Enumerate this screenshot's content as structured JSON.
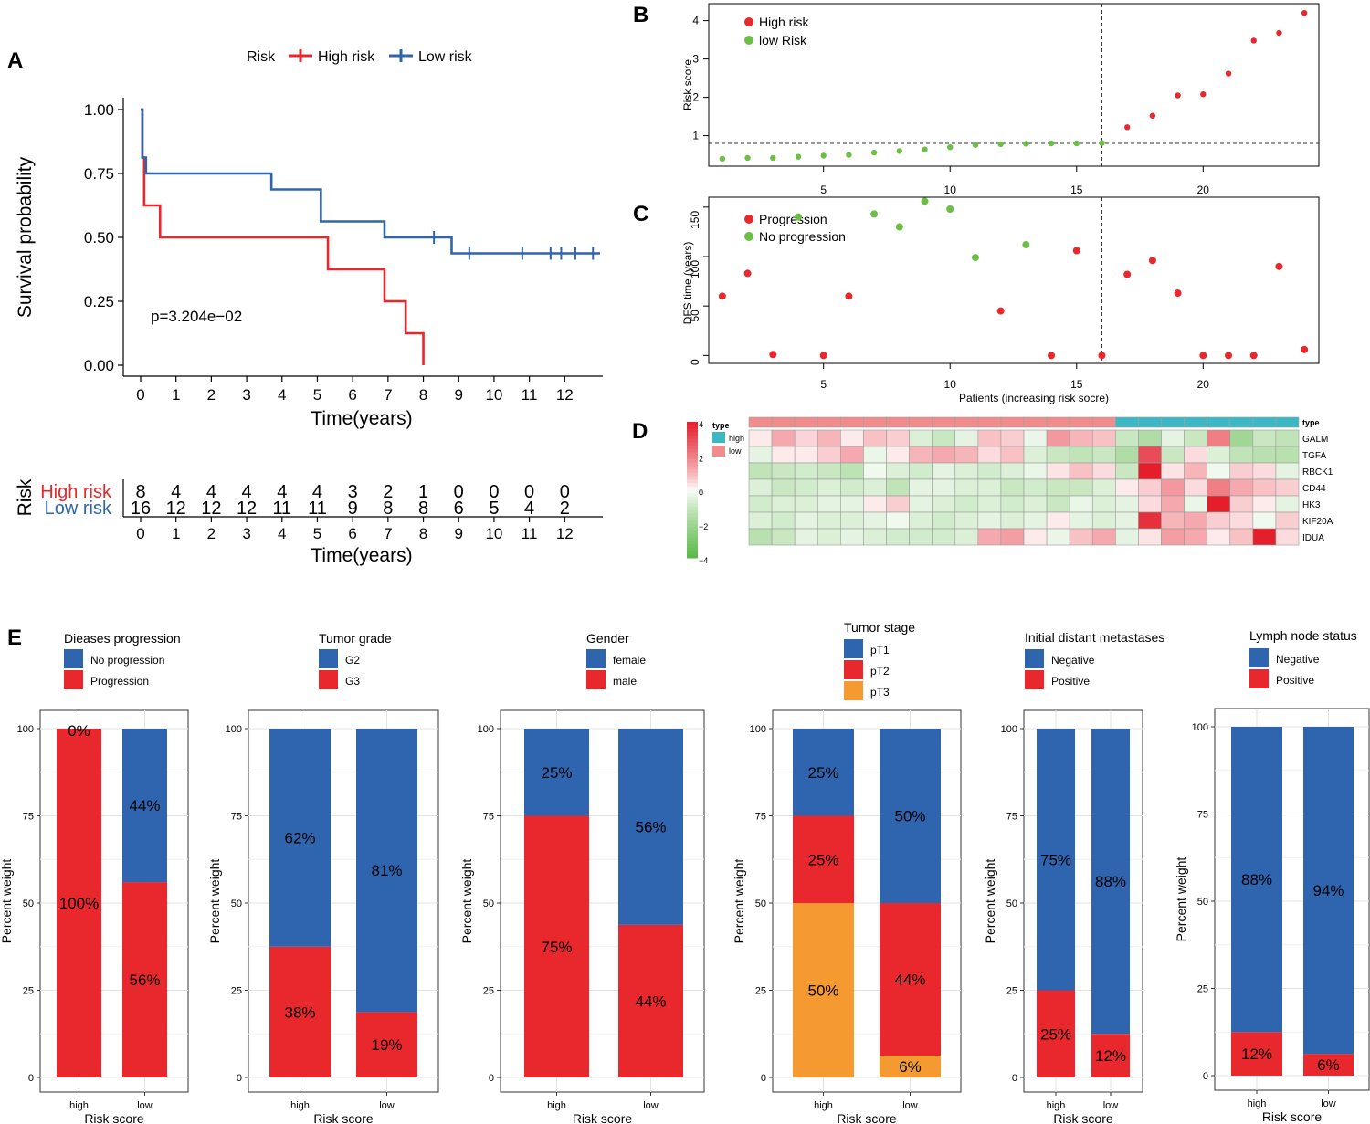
{
  "colors": {
    "high": "#E8282C",
    "low": "#2F64AF",
    "green": "#6DBE45",
    "orange": "#F59A30",
    "teal": "#3BB8C4",
    "pink": "#F08C8C",
    "heat_pos": "#E41E2B",
    "heat_neg": "#5AB946"
  },
  "chart_data": [
    {
      "id": "A",
      "panel_label": "A",
      "type": "line",
      "subtype": "kaplan-meier",
      "legend_title": "Risk",
      "xlabel": "Time(years)",
      "ylabel": "Survival probability",
      "xlim": [
        0,
        13
      ],
      "ylim": [
        0,
        1
      ],
      "x_ticks": [
        0,
        1,
        2,
        3,
        4,
        5,
        6,
        7,
        8,
        9,
        10,
        11,
        12
      ],
      "y_ticks": [
        "0.00",
        "0.25",
        "0.50",
        "0.75",
        "1.00"
      ],
      "annotation": "p=3.204e−02",
      "series": [
        {
          "name": "High risk",
          "steps": [
            [
              0,
              1.0
            ],
            [
              0.05,
              0.8125
            ],
            [
              0.1,
              0.625
            ],
            [
              0.55,
              0.5
            ],
            [
              5.3,
              0.375
            ],
            [
              6.9,
              0.25
            ],
            [
              7.5,
              0.125
            ],
            [
              8.0,
              0.0
            ]
          ],
          "censored": []
        },
        {
          "name": "Low risk",
          "steps": [
            [
              0,
              1.0
            ],
            [
              0.05,
              0.8125
            ],
            [
              0.15,
              0.75
            ],
            [
              3.7,
              0.6875
            ],
            [
              5.1,
              0.5625
            ],
            [
              6.9,
              0.5
            ],
            [
              8.8,
              0.4375
            ],
            [
              13,
              0.4375
            ]
          ],
          "censored": [
            [
              8.3,
              0.5
            ],
            [
              9.3,
              0.4375
            ],
            [
              10.8,
              0.4375
            ],
            [
              11.6,
              0.4375
            ],
            [
              11.9,
              0.4375
            ],
            [
              12.3,
              0.4375
            ],
            [
              12.8,
              0.4375
            ]
          ]
        }
      ],
      "risk_table": {
        "title": "Risk",
        "xlabel": "Time(years)",
        "times": [
          0,
          1,
          2,
          3,
          4,
          5,
          6,
          7,
          8,
          9,
          10,
          11,
          12
        ],
        "rows": [
          {
            "name": "High risk",
            "values": [
              8,
              4,
              4,
              4,
              4,
              4,
              3,
              2,
              1,
              0,
              0,
              0,
              0
            ]
          },
          {
            "name": "Low risk",
            "values": [
              16,
              12,
              12,
              12,
              11,
              11,
              9,
              8,
              8,
              6,
              5,
              4,
              2
            ]
          }
        ]
      }
    },
    {
      "id": "B",
      "panel_label": "B",
      "type": "scatter",
      "ylabel": "Risk score",
      "xlim": [
        0.5,
        24.5
      ],
      "ylim": [
        0.3,
        4.3
      ],
      "x_ticks": [
        5,
        10,
        15,
        20
      ],
      "y_ticks": [
        1,
        2,
        3,
        4
      ],
      "cutoff_x": 16,
      "cutoff_y": 0.8,
      "series": [
        {
          "name": "High risk",
          "x": [
            17,
            18,
            19,
            20,
            21,
            22,
            23,
            24
          ],
          "y": [
            1.22,
            1.52,
            2.05,
            2.08,
            2.62,
            3.48,
            3.68,
            4.2
          ]
        },
        {
          "name": "low Risk",
          "x": [
            1,
            2,
            3,
            4,
            5,
            6,
            7,
            8,
            9,
            10,
            11,
            12,
            13,
            14,
            15,
            16
          ],
          "y": [
            0.4,
            0.42,
            0.42,
            0.45,
            0.48,
            0.5,
            0.56,
            0.6,
            0.64,
            0.7,
            0.76,
            0.78,
            0.79,
            0.8,
            0.8,
            0.81
          ]
        }
      ]
    },
    {
      "id": "C",
      "panel_label": "C",
      "type": "scatter",
      "xlabel": "Patients (increasing risk socre)",
      "ylabel": "DFS time (years)",
      "xlim": [
        0.5,
        24.5
      ],
      "ylim": [
        -8,
        160
      ],
      "x_ticks": [
        5,
        10,
        15,
        20
      ],
      "y_ticks": [
        0,
        50,
        100,
        150
      ],
      "cutoff_x": 16,
      "series": [
        {
          "name": "Progression",
          "x": [
            1,
            2,
            3,
            5,
            6,
            12,
            14,
            15,
            16,
            17,
            18,
            19,
            20,
            21,
            22,
            23,
            24
          ],
          "y": [
            60,
            83,
            1,
            0,
            60,
            45,
            0,
            106,
            0,
            82,
            96,
            63,
            0,
            0,
            0,
            90,
            6
          ]
        },
        {
          "name": "No progression",
          "x": [
            4,
            7,
            8,
            9,
            10,
            11,
            13
          ],
          "y": [
            140,
            143,
            130,
            156,
            148,
            99,
            112
          ]
        }
      ]
    },
    {
      "id": "D",
      "panel_label": "D",
      "type": "heatmap",
      "genes": [
        "GALM",
        "TGFA",
        "RBCK1",
        "CD44",
        "HK3",
        "KIF20A",
        "IDUA"
      ],
      "annotation_label": "type",
      "legend_title": "type",
      "legend_items": [
        "high",
        "low"
      ],
      "scale_ticks": [
        "4",
        "2",
        "0",
        "−2",
        "−4"
      ],
      "column_types": [
        "low",
        "low",
        "low",
        "low",
        "low",
        "low",
        "low",
        "low",
        "low",
        "low",
        "low",
        "low",
        "low",
        "low",
        "low",
        "low",
        "high",
        "high",
        "high",
        "high",
        "high",
        "high",
        "high",
        "high"
      ],
      "values": [
        [
          0.2,
          1.2,
          0.5,
          1.0,
          0.2,
          0.8,
          0.6,
          -0.6,
          -1.0,
          -0.4,
          0.8,
          0.6,
          -0.3,
          1.5,
          1.0,
          0.8,
          -1.0,
          -1.6,
          -0.4,
          -1.0,
          2.0,
          -2.0,
          -1.0,
          -1.2
        ],
        [
          -0.4,
          0.2,
          0.2,
          0.6,
          1.2,
          -0.3,
          0.2,
          1.0,
          1.2,
          1.0,
          0.4,
          0.8,
          -0.6,
          -1.0,
          -1.2,
          -1.0,
          -1.6,
          3.0,
          -1.0,
          0.4,
          -0.6,
          -1.2,
          -1.4,
          -1.4
        ],
        [
          -1.2,
          -1.0,
          -0.8,
          -1.0,
          -1.3,
          -0.2,
          -0.6,
          -0.8,
          -0.4,
          -0.6,
          -0.8,
          -0.6,
          -0.3,
          0.3,
          0.8,
          0.4,
          -1.0,
          4.0,
          0.3,
          1.0,
          -0.2,
          0.6,
          0.4,
          -0.4
        ],
        [
          -0.6,
          -1.0,
          -0.8,
          -0.6,
          -0.8,
          -0.6,
          -1.2,
          -0.4,
          -0.4,
          -0.6,
          -0.6,
          -1.0,
          -0.8,
          -1.0,
          -1.0,
          -0.6,
          0.2,
          0.6,
          1.5,
          0.4,
          2.0,
          1.2,
          0.8,
          0.6
        ],
        [
          -0.8,
          -0.6,
          -0.6,
          -0.4,
          -0.4,
          0.2,
          0.6,
          -0.4,
          -0.6,
          -0.8,
          -0.6,
          -0.8,
          -0.6,
          -1.0,
          -0.3,
          -0.6,
          -0.4,
          0.4,
          1.2,
          -0.3,
          4.0,
          0.6,
          0.2,
          -0.4
        ],
        [
          -0.6,
          -0.8,
          -0.4,
          -0.6,
          -0.6,
          -0.4,
          -0.2,
          -0.6,
          -0.8,
          -0.6,
          -0.4,
          -0.6,
          -0.4,
          0.2,
          -0.4,
          -0.6,
          -0.4,
          3.6,
          1.0,
          1.2,
          0.6,
          0.4,
          -0.2,
          0.6
        ],
        [
          -1.4,
          -1.0,
          -0.4,
          -0.6,
          -0.4,
          -0.6,
          -0.8,
          -0.8,
          -0.8,
          -0.6,
          1.2,
          1.4,
          0.2,
          -0.3,
          0.8,
          1.2,
          -0.4,
          0.3,
          1.4,
          1.2,
          0.2,
          0.8,
          4.0,
          0.4
        ]
      ]
    },
    {
      "id": "E1",
      "panel_label": "E",
      "type": "bar",
      "stacked": true,
      "legend_title": "Dieases progression",
      "xlabel": "Risk score",
      "ylabel": "Percent weight",
      "categories": [
        "high",
        "low"
      ],
      "ylim": [
        0,
        100
      ],
      "y_ticks": [
        0,
        25,
        50,
        75,
        100
      ],
      "series": [
        {
          "name": "No progression",
          "color": "#2F64AF",
          "values": [
            0,
            44
          ],
          "labels": [
            "0%",
            "44%"
          ]
        },
        {
          "name": "Progression",
          "color": "#E8282C",
          "values": [
            100,
            56
          ],
          "labels": [
            "100%",
            "56%"
          ]
        }
      ]
    },
    {
      "id": "E2",
      "type": "bar",
      "stacked": true,
      "legend_title": "Tumor grade",
      "xlabel": "Risk score",
      "ylabel": "Percent weight",
      "categories": [
        "high",
        "low"
      ],
      "ylim": [
        0,
        100
      ],
      "y_ticks": [
        0,
        25,
        50,
        75,
        100
      ],
      "series": [
        {
          "name": "G2",
          "color": "#2F64AF",
          "values": [
            62.5,
            81.25
          ],
          "labels": [
            "62%",
            "81%"
          ]
        },
        {
          "name": "G3",
          "color": "#E8282C",
          "values": [
            37.5,
            18.75
          ],
          "labels": [
            "38%",
            "19%"
          ]
        }
      ]
    },
    {
      "id": "E3",
      "type": "bar",
      "stacked": true,
      "legend_title": "Gender",
      "xlabel": "Risk score",
      "ylabel": "Percent weight",
      "categories": [
        "high",
        "low"
      ],
      "ylim": [
        0,
        100
      ],
      "y_ticks": [
        0,
        25,
        50,
        75,
        100
      ],
      "series": [
        {
          "name": "female",
          "color": "#2F64AF",
          "values": [
            25,
            56.25
          ],
          "labels": [
            "25%",
            "56%"
          ]
        },
        {
          "name": "male",
          "color": "#E8282C",
          "values": [
            75,
            43.75
          ],
          "labels": [
            "75%",
            "44%"
          ]
        }
      ]
    },
    {
      "id": "E4",
      "type": "bar",
      "stacked": true,
      "legend_title": "Tumor stage",
      "xlabel": "Risk score",
      "ylabel": "Percent weight",
      "categories": [
        "high",
        "low"
      ],
      "ylim": [
        0,
        100
      ],
      "y_ticks": [
        0,
        25,
        50,
        75,
        100
      ],
      "series": [
        {
          "name": "pT1",
          "color": "#2F64AF",
          "values": [
            25,
            50
          ],
          "labels": [
            "25%",
            "50%"
          ]
        },
        {
          "name": "pT2",
          "color": "#E8282C",
          "values": [
            25,
            43.75
          ],
          "labels": [
            "25%",
            "44%"
          ]
        },
        {
          "name": "pT3",
          "color": "#F59A30",
          "values": [
            50,
            6.25
          ],
          "labels": [
            "50%",
            "6%"
          ]
        }
      ]
    },
    {
      "id": "E5",
      "type": "bar",
      "stacked": true,
      "legend_title": "Initial distant metastases",
      "xlabel": "Risk score",
      "ylabel": "Percent weight",
      "categories": [
        "high",
        "low"
      ],
      "ylim": [
        0,
        100
      ],
      "y_ticks": [
        0,
        25,
        50,
        75,
        100
      ],
      "series": [
        {
          "name": "Negative",
          "color": "#2F64AF",
          "values": [
            75,
            87.5
          ],
          "labels": [
            "75%",
            "88%"
          ]
        },
        {
          "name": "Positive",
          "color": "#E8282C",
          "values": [
            25,
            12.5
          ],
          "labels": [
            "25%",
            "12%"
          ]
        }
      ]
    },
    {
      "id": "E6",
      "type": "bar",
      "stacked": true,
      "legend_title": "Lymph node status",
      "xlabel": "Risk score",
      "ylabel": "Percent weight",
      "categories": [
        "high",
        "low"
      ],
      "ylim": [
        0,
        100
      ],
      "y_ticks": [
        0,
        25,
        50,
        75,
        100
      ],
      "series": [
        {
          "name": "Negative",
          "color": "#2F64AF",
          "values": [
            87.5,
            93.75
          ],
          "labels": [
            "88%",
            "94%"
          ]
        },
        {
          "name": "Positive",
          "color": "#E8282C",
          "values": [
            12.5,
            6.25
          ],
          "labels": [
            "12%",
            "6%"
          ]
        }
      ]
    }
  ]
}
